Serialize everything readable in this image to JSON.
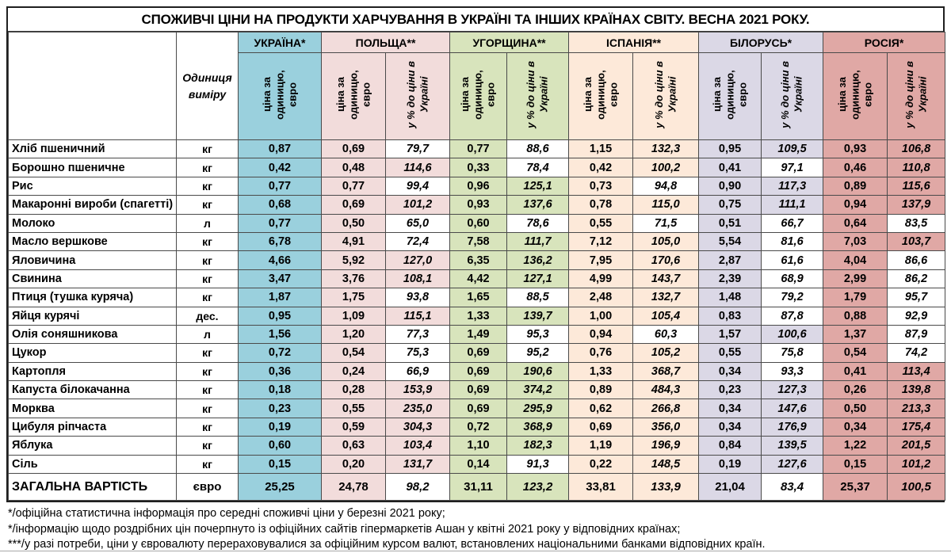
{
  "title": "СПОЖИВЧІ ЦІНИ НА ПРОДУКТИ ХАРЧУВАННЯ В УКРАЇНІ ТА ІНШИХ КРАЇНАХ СВІТУ. ВЕСНА 2021 РОКУ.",
  "header": {
    "unit_column_label": "Одиниця\nвиміру",
    "price_label": "ціна за одиницю,\nєвро",
    "pct_label": "у % до ціни в\nУкраїні",
    "countries": [
      {
        "id": "ua",
        "name": "УКРАЇНА*",
        "color": "#9AD0DD",
        "has_pct": false
      },
      {
        "id": "pl",
        "name": "ПОЛЬЩА**",
        "color": "#F2DCDB",
        "has_pct": true
      },
      {
        "id": "hu",
        "name": "УГОРЩИНА**",
        "color": "#D8E4BC",
        "has_pct": true
      },
      {
        "id": "es",
        "name": "ІСПАНІЯ**",
        "color": "#FDE9D9",
        "has_pct": true
      },
      {
        "id": "by",
        "name": "БІЛОРУСЬ*",
        "color": "#DBD8E6",
        "has_pct": true
      },
      {
        "id": "ru",
        "name": "РОСІЯ*",
        "color": "#E0A8A5",
        "has_pct": true
      }
    ],
    "pct_highlight_threshold": 100,
    "pct_below_threshold_color": "#FFFFFF"
  },
  "rows": [
    {
      "product": "Хліб пшеничний",
      "unit": "кг",
      "ua": "0,87",
      "pl": [
        "0,69",
        "79,7"
      ],
      "hu": [
        "0,77",
        "88,6"
      ],
      "es": [
        "1,15",
        "132,3"
      ],
      "by": [
        "0,95",
        "109,5"
      ],
      "ru": [
        "0,93",
        "106,8"
      ]
    },
    {
      "product": "Борошно пшеничне",
      "unit": "кг",
      "ua": "0,42",
      "pl": [
        "0,48",
        "114,6"
      ],
      "hu": [
        "0,33",
        "78,4"
      ],
      "es": [
        "0,42",
        "100,2"
      ],
      "by": [
        "0,41",
        "97,1"
      ],
      "ru": [
        "0,46",
        "110,8"
      ]
    },
    {
      "product": "Рис",
      "unit": "кг",
      "ua": "0,77",
      "pl": [
        "0,77",
        "99,4"
      ],
      "hu": [
        "0,96",
        "125,1"
      ],
      "es": [
        "0,73",
        "94,8"
      ],
      "by": [
        "0,90",
        "117,3"
      ],
      "ru": [
        "0,89",
        "115,6"
      ]
    },
    {
      "product": "Макаронні вироби (спагетті)",
      "unit": "кг",
      "ua": "0,68",
      "pl": [
        "0,69",
        "101,2"
      ],
      "hu": [
        "0,93",
        "137,6"
      ],
      "es": [
        "0,78",
        "115,0"
      ],
      "by": [
        "0,75",
        "111,1"
      ],
      "ru": [
        "0,94",
        "137,9"
      ]
    },
    {
      "product": "Молоко",
      "unit": "л",
      "ua": "0,77",
      "pl": [
        "0,50",
        "65,0"
      ],
      "hu": [
        "0,60",
        "78,6"
      ],
      "es": [
        "0,55",
        "71,5"
      ],
      "by": [
        "0,51",
        "66,7"
      ],
      "ru": [
        "0,64",
        "83,5"
      ]
    },
    {
      "product": "Масло вершкове",
      "unit": "кг",
      "ua": "6,78",
      "pl": [
        "4,91",
        "72,4"
      ],
      "hu": [
        "7,58",
        "111,7"
      ],
      "es": [
        "7,12",
        "105,0"
      ],
      "by": [
        "5,54",
        "81,6"
      ],
      "ru": [
        "7,03",
        "103,7"
      ]
    },
    {
      "product": "Яловичина",
      "unit": "кг",
      "ua": "4,66",
      "pl": [
        "5,92",
        "127,0"
      ],
      "hu": [
        "6,35",
        "136,2"
      ],
      "es": [
        "7,95",
        "170,6"
      ],
      "by": [
        "2,87",
        "61,6"
      ],
      "ru": [
        "4,04",
        "86,6"
      ]
    },
    {
      "product": "Свинина",
      "unit": "кг",
      "ua": "3,47",
      "pl": [
        "3,76",
        "108,1"
      ],
      "hu": [
        "4,42",
        "127,1"
      ],
      "es": [
        "4,99",
        "143,7"
      ],
      "by": [
        "2,39",
        "68,9"
      ],
      "ru": [
        "2,99",
        "86,2"
      ]
    },
    {
      "product": "Птиця (тушка куряча)",
      "unit": "кг",
      "ua": "1,87",
      "pl": [
        "1,75",
        "93,8"
      ],
      "hu": [
        "1,65",
        "88,5"
      ],
      "es": [
        "2,48",
        "132,7"
      ],
      "by": [
        "1,48",
        "79,2"
      ],
      "ru": [
        "1,79",
        "95,7"
      ]
    },
    {
      "product": "Яйця курячі",
      "unit": "дес.",
      "ua": "0,95",
      "pl": [
        "1,09",
        "115,1"
      ],
      "hu": [
        "1,33",
        "139,7"
      ],
      "es": [
        "1,00",
        "105,4"
      ],
      "by": [
        "0,83",
        "87,8"
      ],
      "ru": [
        "0,88",
        "92,9"
      ]
    },
    {
      "product": "Олія  соняшникова",
      "unit": "л",
      "ua": "1,56",
      "pl": [
        "1,20",
        "77,3"
      ],
      "hu": [
        "1,49",
        "95,3"
      ],
      "es": [
        "0,94",
        "60,3"
      ],
      "by": [
        "1,57",
        "100,6"
      ],
      "ru": [
        "1,37",
        "87,9"
      ]
    },
    {
      "product": "Цукор",
      "unit": "кг",
      "ua": "0,72",
      "pl": [
        "0,54",
        "75,3"
      ],
      "hu": [
        "0,69",
        "95,2"
      ],
      "es": [
        "0,76",
        "105,2"
      ],
      "by": [
        "0,55",
        "75,8"
      ],
      "ru": [
        "0,54",
        "74,2"
      ]
    },
    {
      "product": "Картопля",
      "unit": "кг",
      "ua": "0,36",
      "pl": [
        "0,24",
        "66,9"
      ],
      "hu": [
        "0,69",
        "190,6"
      ],
      "es": [
        "1,33",
        "368,7"
      ],
      "by": [
        "0,34",
        "93,3"
      ],
      "ru": [
        "0,41",
        "113,4"
      ]
    },
    {
      "product": "Капуста білокачанна",
      "unit": "кг",
      "ua": "0,18",
      "pl": [
        "0,28",
        "153,9"
      ],
      "hu": [
        "0,69",
        "374,2"
      ],
      "es": [
        "0,89",
        "484,3"
      ],
      "by": [
        "0,23",
        "127,3"
      ],
      "ru": [
        "0,26",
        "139,8"
      ]
    },
    {
      "product": "Морква",
      "unit": "кг",
      "ua": "0,23",
      "pl": [
        "0,55",
        "235,0"
      ],
      "hu": [
        "0,69",
        "295,9"
      ],
      "es": [
        "0,62",
        "266,8"
      ],
      "by": [
        "0,34",
        "147,6"
      ],
      "ru": [
        "0,50",
        "213,3"
      ]
    },
    {
      "product": "Цибуля ріпчаста",
      "unit": "кг",
      "ua": "0,19",
      "pl": [
        "0,59",
        "304,3"
      ],
      "hu": [
        "0,72",
        "368,9"
      ],
      "es": [
        "0,69",
        "356,0"
      ],
      "by": [
        "0,34",
        "176,9"
      ],
      "ru": [
        "0,34",
        "175,4"
      ]
    },
    {
      "product": "Яблука",
      "unit": "кг",
      "ua": "0,60",
      "pl": [
        "0,63",
        "103,4"
      ],
      "hu": [
        "1,10",
        "182,3"
      ],
      "es": [
        "1,19",
        "196,9"
      ],
      "by": [
        "0,84",
        "139,5"
      ],
      "ru": [
        "1,22",
        "201,5"
      ]
    },
    {
      "product": "Сіль",
      "unit": "кг",
      "ua": "0,15",
      "pl": [
        "0,20",
        "131,7"
      ],
      "hu": [
        "0,14",
        "91,3"
      ],
      "es": [
        "0,22",
        "148,5"
      ],
      "by": [
        "0,19",
        "127,6"
      ],
      "ru": [
        "0,15",
        "101,2"
      ]
    }
  ],
  "total_row": {
    "product": "ЗАГАЛЬНА ВАРТІСТЬ",
    "unit": "євро",
    "ua": "25,25",
    "pl": [
      "24,78",
      "98,2"
    ],
    "hu": [
      "31,11",
      "123,2"
    ],
    "es": [
      "33,81",
      "133,9"
    ],
    "by": [
      "21,04",
      "83,4"
    ],
    "ru": [
      "25,37",
      "100,5"
    ]
  },
  "footnotes": [
    "*/офіційна статистична інформація про середні споживчі ціни у березні 2021 року;",
    "*/інформацію щодо роздрібних цін почерпнуто із офіційних сайтів гіпермаркетів Ашан у квітні 2021 року у відповідних країнах;",
    "***/у разі потреби, ціни у євровалюту перераховувалися за офіційним курсом валют, встановлених національними банками відповідних країн."
  ]
}
